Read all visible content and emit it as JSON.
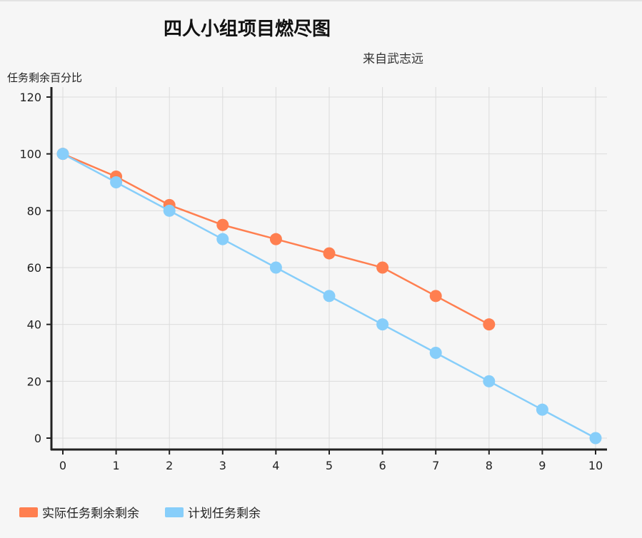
{
  "chart_data": {
    "type": "line",
    "title": "四人小组项目燃尽图",
    "subtitle": "来自武志远",
    "ylabel": "任务剩余百分比",
    "xlabel": "",
    "x": [
      0,
      1,
      2,
      3,
      4,
      5,
      6,
      7,
      8,
      9,
      10
    ],
    "xlim": [
      0,
      10
    ],
    "ylim": [
      0,
      120
    ],
    "yticks": [
      0,
      20,
      40,
      60,
      80,
      100,
      120
    ],
    "grid": true,
    "legend_position": "bottom-left",
    "series": [
      {
        "name": "实际任务剩余剩余",
        "color": "#ff7f50",
        "x": [
          0,
          1,
          2,
          3,
          4,
          5,
          6,
          7,
          8
        ],
        "values": [
          100,
          92,
          82,
          75,
          70,
          65,
          60,
          50,
          40
        ]
      },
      {
        "name": "计划任务剩余",
        "color": "#87cefa",
        "x": [
          0,
          1,
          2,
          3,
          4,
          5,
          6,
          7,
          8,
          9,
          10
        ],
        "values": [
          100,
          90,
          80,
          70,
          60,
          50,
          40,
          30,
          20,
          10,
          0
        ]
      }
    ]
  }
}
